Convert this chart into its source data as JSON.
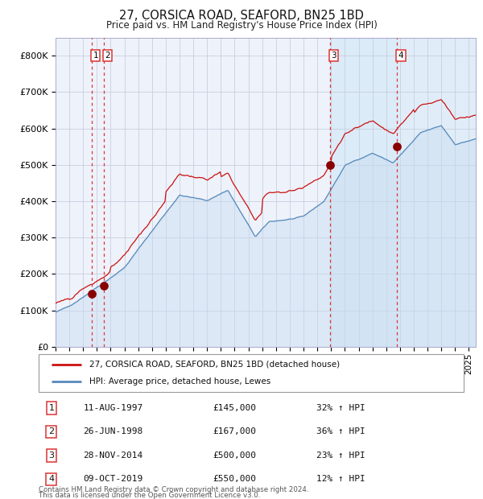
{
  "title": "27, CORSICA ROAD, SEAFORD, BN25 1BD",
  "subtitle": "Price paid vs. HM Land Registry's House Price Index (HPI)",
  "background_color": "#ffffff",
  "plot_bg_color": "#eef2fa",
  "grid_color": "#c8cfe0",
  "hpi_line_color": "#5588bb",
  "hpi_fill_color": "#c8dcf0",
  "span_fill_color": "#d8eaf8",
  "price_line_color": "#cc1111",
  "sale_dot_color": "#880000",
  "vline_color": "#dd3333",
  "sale_events": [
    {
      "label": "1",
      "date_x": 1997.61,
      "price": 145000,
      "date_str": "11-AUG-1997",
      "amount_str": "£145,000",
      "pct_str": "32% ↑ HPI"
    },
    {
      "label": "2",
      "date_x": 1998.49,
      "price": 167000,
      "date_str": "26-JUN-1998",
      "amount_str": "£167,000",
      "pct_str": "36% ↑ HPI"
    },
    {
      "label": "3",
      "date_x": 2014.91,
      "price": 500000,
      "date_str": "28-NOV-2014",
      "amount_str": "£500,000",
      "pct_str": "23% ↑ HPI"
    },
    {
      "label": "4",
      "date_x": 2019.77,
      "price": 550000,
      "date_str": "09-OCT-2019",
      "amount_str": "£550,000",
      "pct_str": "12% ↑ HPI"
    }
  ],
  "legend_line1": "27, CORSICA ROAD, SEAFORD, BN25 1BD (detached house)",
  "legend_line2": "HPI: Average price, detached house, Lewes",
  "footnote1": "Contains HM Land Registry data © Crown copyright and database right 2024.",
  "footnote2": "This data is licensed under the Open Government Licence v3.0.",
  "xmin": 1995.0,
  "xmax": 2025.5,
  "ymin": 0,
  "ymax": 850000,
  "yticks": [
    0,
    100000,
    200000,
    300000,
    400000,
    500000,
    600000,
    700000,
    800000
  ]
}
